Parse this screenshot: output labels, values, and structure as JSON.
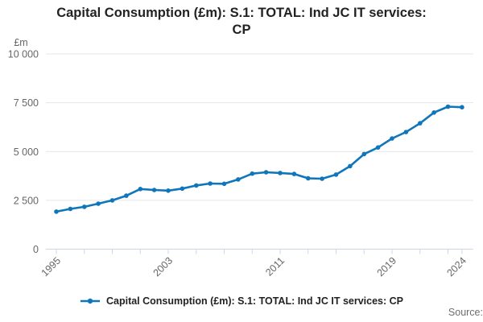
{
  "title": {
    "line1": "Capital Consumption (£m): S.1: TOTAL: Ind JC IT services:",
    "line2": "CP"
  },
  "legend": {
    "label": "Capital Consumption (£m): S.1: TOTAL: Ind JC IT services: CP",
    "marker": "line-with-dot-icon"
  },
  "source": {
    "label": "Source:"
  },
  "colors": {
    "series": "#1076bc",
    "grid": "#e6e6e6",
    "axis": "#ccd6eb",
    "tick_label": "#666666",
    "title": "#222222",
    "source": "#6e6e6e"
  },
  "chart_data": {
    "type": "line",
    "title": "Capital Consumption (£m): S.1: TOTAL: Ind JC IT services: CP",
    "series_name": "Capital Consumption (£m): S.1: TOTAL: Ind JC IT services: CP",
    "unit_label": "£m",
    "xlabel": "",
    "ylabel": "£m",
    "xlim": [
      1995,
      2024
    ],
    "ylim": [
      0,
      10000
    ],
    "grid": "horizontal",
    "legend_position": "bottom",
    "x": [
      1995,
      1996,
      1997,
      1998,
      1999,
      2000,
      2001,
      2002,
      2003,
      2004,
      2005,
      2006,
      2007,
      2008,
      2009,
      2010,
      2011,
      2012,
      2013,
      2014,
      2015,
      2016,
      2017,
      2018,
      2019,
      2020,
      2021,
      2022,
      2023,
      2024
    ],
    "values": [
      1920,
      2060,
      2170,
      2330,
      2500,
      2740,
      3080,
      3030,
      3000,
      3100,
      3260,
      3360,
      3350,
      3570,
      3870,
      3940,
      3900,
      3850,
      3630,
      3610,
      3820,
      4250,
      4870,
      5210,
      5670,
      6000,
      6450,
      7000,
      7300,
      7270
    ],
    "y_ticks": [
      {
        "value": 0,
        "label": "0"
      },
      {
        "value": 2500,
        "label": "2 500"
      },
      {
        "value": 5000,
        "label": "5 000"
      },
      {
        "value": 7500,
        "label": "7 500"
      },
      {
        "value": 10000,
        "label": "10 000"
      }
    ],
    "x_tick_years": [
      1995,
      1997,
      1999,
      2001,
      2003,
      2005,
      2007,
      2009,
      2011,
      2013,
      2015,
      2017,
      2019,
      2021,
      2023,
      2024
    ],
    "x_label_ticks": [
      {
        "value": 1995,
        "label": "1995"
      },
      {
        "value": 2003,
        "label": "2003"
      },
      {
        "value": 2011,
        "label": "2011"
      },
      {
        "value": 2019,
        "label": "2019"
      },
      {
        "value": 2024,
        "label": "2024"
      }
    ]
  }
}
